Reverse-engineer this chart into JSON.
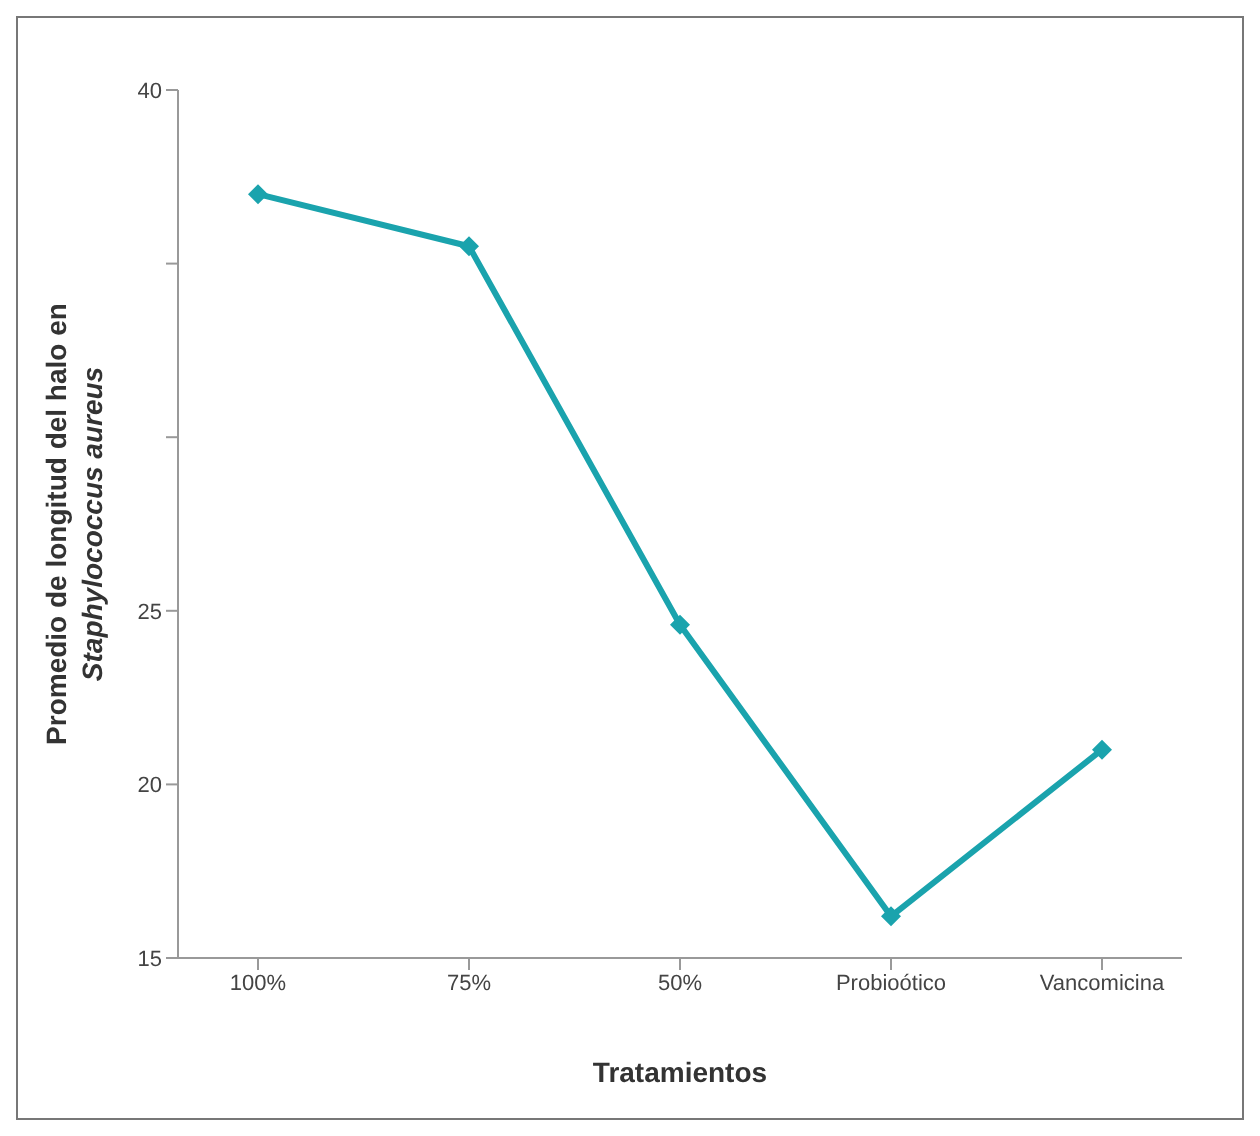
{
  "chart_data": {
    "type": "line",
    "xlabel": "Tratamientos",
    "ylabel": "Promedio de longitud del halo en Staphylococcus aureus",
    "categories": [
      "100%",
      "75%",
      "50%",
      "Probioótico",
      "Vancomicina"
    ],
    "series": [
      {
        "color": "#1aa3ad",
        "values": [
          37.0,
          35.5,
          24.6,
          16.2,
          21.0
        ]
      }
    ],
    "ylim": [
      15,
      40
    ],
    "yticks": [
      15,
      20,
      25,
      {
        "value": 30,
        "label": null
      },
      {
        "value": 35,
        "label": null
      },
      40
    ],
    "grid": false,
    "legend": false,
    "marker": "diamond",
    "line_style": "solid"
  }
}
